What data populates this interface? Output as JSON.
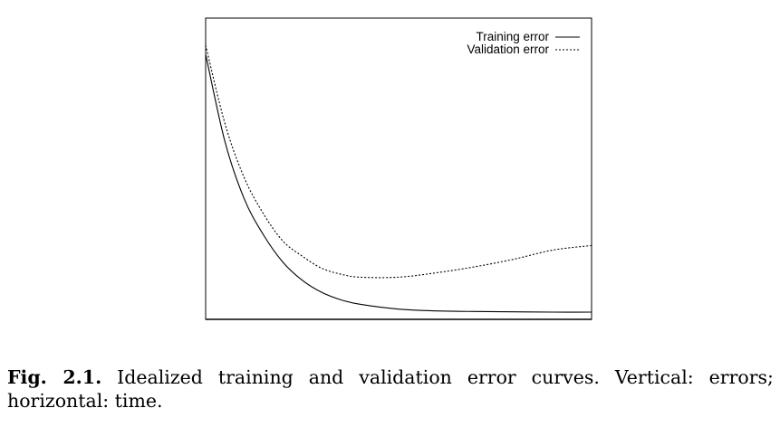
{
  "figure": {
    "caption_label": "Fig. 2.1.",
    "caption_text": "Idealized training and validation error curves. Vertical: errors; horizontal: time."
  },
  "chart_data": {
    "type": "line",
    "title": "",
    "xlabel": "",
    "ylabel": "",
    "xlim": [
      0,
      1
    ],
    "ylim": [
      0,
      1
    ],
    "grid": false,
    "legend_position": "top-right",
    "series": [
      {
        "name": "Training error",
        "style": "solid",
        "x": [
          0,
          0.05,
          0.1,
          0.15,
          0.2,
          0.25,
          0.3,
          0.35,
          0.4,
          0.5,
          0.6,
          0.7,
          0.8,
          0.9,
          1.0
        ],
        "y": [
          0.88,
          0.59,
          0.4,
          0.28,
          0.19,
          0.13,
          0.09,
          0.065,
          0.05,
          0.034,
          0.028,
          0.026,
          0.025,
          0.024,
          0.024
        ]
      },
      {
        "name": "Validation error",
        "style": "dashed",
        "x": [
          0,
          0.05,
          0.1,
          0.15,
          0.2,
          0.25,
          0.3,
          0.35,
          0.4,
          0.5,
          0.6,
          0.7,
          0.8,
          0.9,
          1.0
        ],
        "y": [
          0.91,
          0.65,
          0.47,
          0.35,
          0.26,
          0.21,
          0.17,
          0.15,
          0.14,
          0.14,
          0.155,
          0.175,
          0.2,
          0.23,
          0.245
        ]
      }
    ]
  }
}
